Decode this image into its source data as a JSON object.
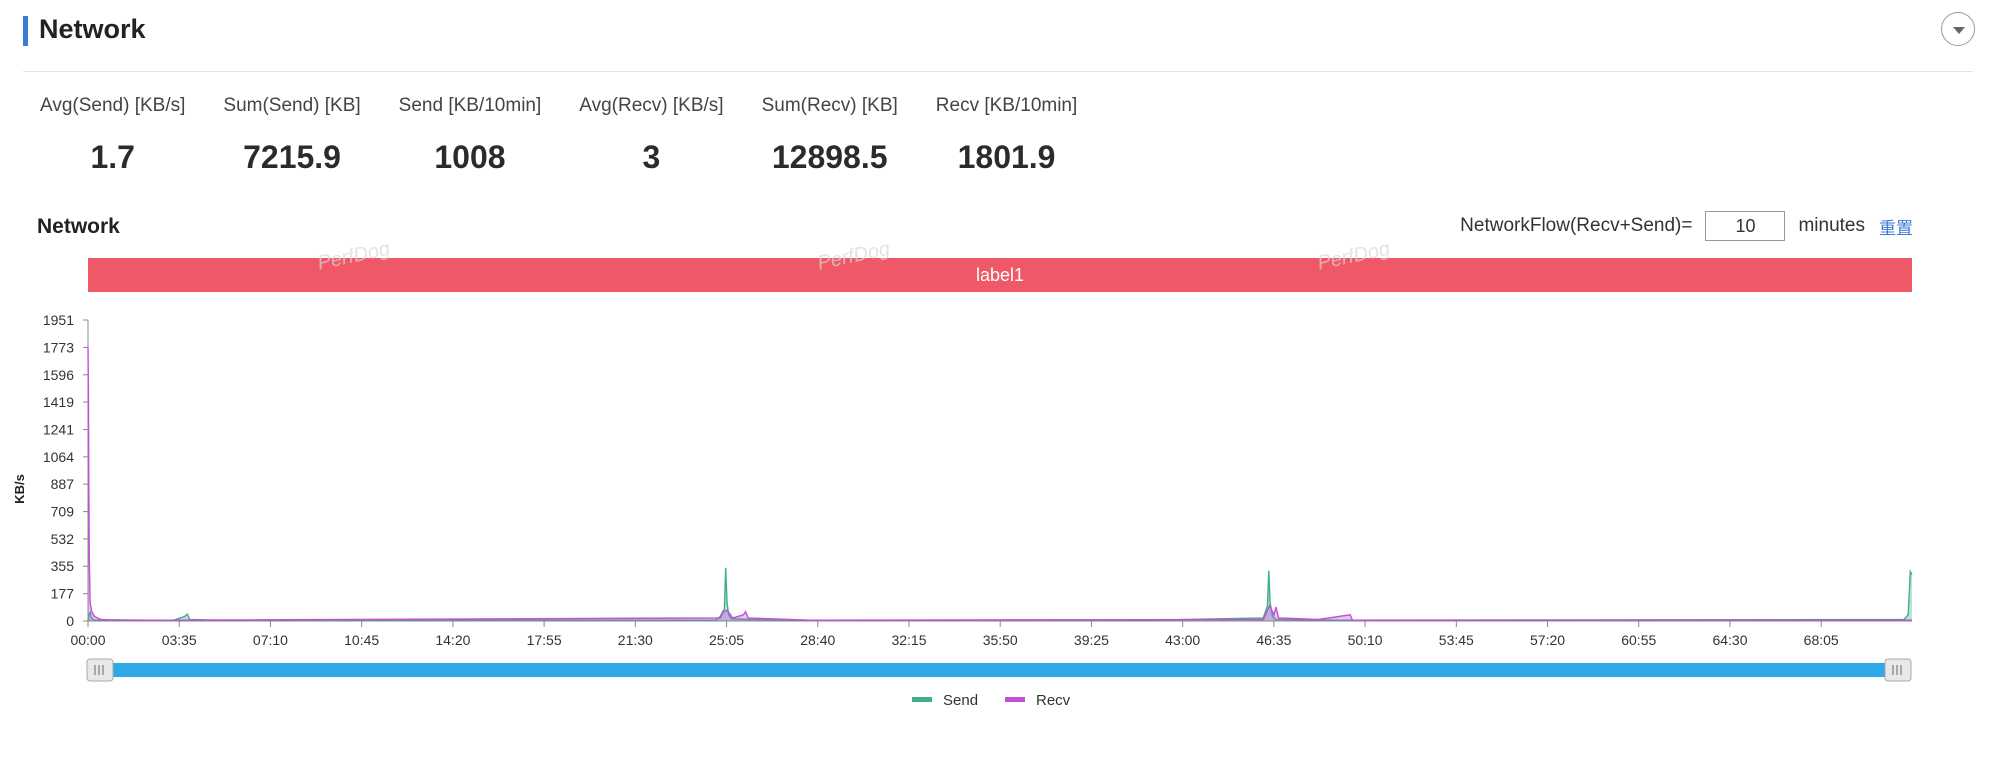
{
  "header": {
    "title": "Network"
  },
  "stats": [
    {
      "label": "Avg(Send) [KB/s]",
      "value": "1.7"
    },
    {
      "label": "Sum(Send) [KB]",
      "value": "7215.9"
    },
    {
      "label": "Send [KB/10min]",
      "value": "1008"
    },
    {
      "label": "Avg(Recv) [KB/s]",
      "value": "3"
    },
    {
      "label": "Sum(Recv) [KB]",
      "value": "12898.5"
    },
    {
      "label": "Recv [KB/10min]",
      "value": "1801.9"
    }
  ],
  "controls": {
    "title": "Network",
    "networkflow_label": "NetworkFlow(Recv+Send)=",
    "minutes_value": "10",
    "minutes_label": "minutes",
    "reset_label": "重置"
  },
  "watermark": "PerfDog",
  "colors": {
    "accent": "#3a7bd5",
    "label_band": "#ef5866",
    "send": "#3fae8a",
    "recv": "#c051d6",
    "slider": "#2fa8e6"
  },
  "chart_data": {
    "type": "area",
    "title": "",
    "ylabel": "KB/s",
    "ylim": [
      0,
      1951
    ],
    "y_ticks": [
      "0",
      "177",
      "355",
      "532",
      "709",
      "887",
      "1064",
      "1241",
      "1419",
      "1596",
      "1773",
      "1951"
    ],
    "x_ticks": [
      "00:00",
      "03:35",
      "07:10",
      "10:45",
      "14:20",
      "17:55",
      "21:30",
      "25:05",
      "28:40",
      "32:15",
      "35:50",
      "39:25",
      "43:00",
      "46:35",
      "50:10",
      "53:45",
      "57:20",
      "60:55",
      "64:30",
      "68:05"
    ],
    "x_range_seconds": [
      0,
      4299
    ],
    "annotation_band": "label1",
    "legend_position": "bottom",
    "series": [
      {
        "name": "Send",
        "points": [
          [
            0,
            5
          ],
          [
            2,
            40
          ],
          [
            5,
            55
          ],
          [
            8,
            20
          ],
          [
            15,
            5
          ],
          [
            60,
            8
          ],
          [
            200,
            3
          ],
          [
            228,
            30
          ],
          [
            234,
            45
          ],
          [
            240,
            10
          ],
          [
            300,
            5
          ],
          [
            1480,
            5
          ],
          [
            1490,
            30
          ],
          [
            1500,
            80
          ],
          [
            1503,
            345
          ],
          [
            1506,
            120
          ],
          [
            1510,
            40
          ],
          [
            1516,
            15
          ],
          [
            1560,
            10
          ],
          [
            1700,
            5
          ],
          [
            2500,
            5
          ],
          [
            2770,
            20
          ],
          [
            2780,
            100
          ],
          [
            2783,
            325
          ],
          [
            2786,
            120
          ],
          [
            2792,
            30
          ],
          [
            2800,
            10
          ],
          [
            2950,
            5
          ],
          [
            4280,
            10
          ],
          [
            4290,
            40
          ],
          [
            4295,
            320
          ],
          [
            4299,
            300
          ]
        ]
      },
      {
        "name": "Recv",
        "points": [
          [
            0,
            1773
          ],
          [
            1,
            1500
          ],
          [
            2,
            900
          ],
          [
            3,
            400
          ],
          [
            5,
            120
          ],
          [
            9,
            60
          ],
          [
            15,
            30
          ],
          [
            30,
            10
          ],
          [
            60,
            5
          ],
          [
            200,
            5
          ],
          [
            1490,
            20
          ],
          [
            1498,
            60
          ],
          [
            1506,
            70
          ],
          [
            1520,
            20
          ],
          [
            1545,
            40
          ],
          [
            1550,
            60
          ],
          [
            1556,
            20
          ],
          [
            1700,
            5
          ],
          [
            2770,
            10
          ],
          [
            2785,
            100
          ],
          [
            2795,
            40
          ],
          [
            2800,
            90
          ],
          [
            2806,
            20
          ],
          [
            2900,
            10
          ],
          [
            2975,
            40
          ],
          [
            2980,
            5
          ],
          [
            4299,
            5
          ]
        ]
      }
    ]
  }
}
